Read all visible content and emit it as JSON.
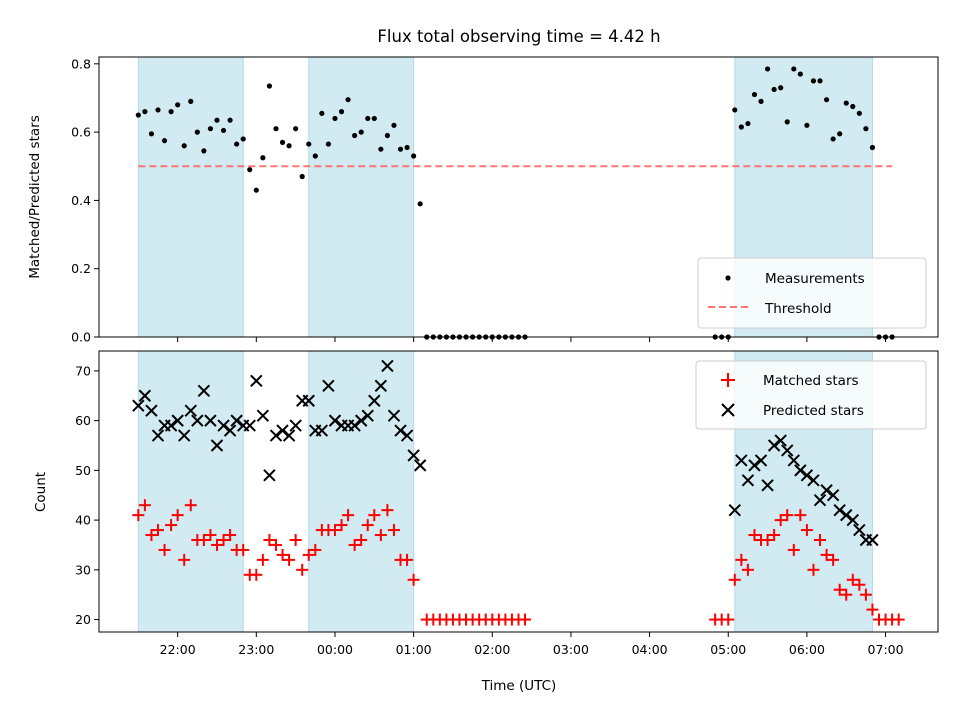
{
  "chart_data": [
    {
      "type": "scatter",
      "panel": "top",
      "title": "Flux total observing time = 4.42 h",
      "xlabel": "",
      "ylabel": "Matched/Predicted stars",
      "ylim": [
        0.0,
        0.82
      ],
      "yticks": [
        "0.0",
        "0.2",
        "0.4",
        "0.6",
        "0.8"
      ],
      "shaded_intervals": [
        [
          "21:30",
          "22:50"
        ],
        [
          "23:40",
          "01:00"
        ],
        [
          "05:05",
          "06:50"
        ]
      ],
      "shade_color": "#add8e6",
      "legend": {
        "position": "lower-right",
        "entries": [
          "Measurements",
          "Threshold"
        ]
      },
      "threshold": {
        "name": "Threshold",
        "value": 0.5,
        "x_range": [
          "21:30",
          "07:05"
        ],
        "color": "#ff6666",
        "style": "dashed"
      },
      "series": [
        {
          "name": "Measurements",
          "color": "#000000",
          "marker": "dot",
          "points": [
            [
              "21:30",
              0.65
            ],
            [
              "21:35",
              0.66
            ],
            [
              "21:40",
              0.595
            ],
            [
              "21:45",
              0.665
            ],
            [
              "21:50",
              0.575
            ],
            [
              "21:55",
              0.66
            ],
            [
              "22:00",
              0.68
            ],
            [
              "22:05",
              0.56
            ],
            [
              "22:10",
              0.69
            ],
            [
              "22:15",
              0.6
            ],
            [
              "22:20",
              0.545
            ],
            [
              "22:25",
              0.61
            ],
            [
              "22:30",
              0.635
            ],
            [
              "22:35",
              0.605
            ],
            [
              "22:40",
              0.635
            ],
            [
              "22:45",
              0.565
            ],
            [
              "22:50",
              0.58
            ],
            [
              "22:55",
              0.49
            ],
            [
              "23:00",
              0.43
            ],
            [
              "23:05",
              0.525
            ],
            [
              "23:10",
              0.735
            ],
            [
              "23:15",
              0.61
            ],
            [
              "23:20",
              0.57
            ],
            [
              "23:25",
              0.56
            ],
            [
              "23:30",
              0.61
            ],
            [
              "23:35",
              0.47
            ],
            [
              "23:40",
              0.565
            ],
            [
              "23:45",
              0.53
            ],
            [
              "23:50",
              0.655
            ],
            [
              "23:55",
              0.565
            ],
            [
              "00:00",
              0.64
            ],
            [
              "00:05",
              0.66
            ],
            [
              "00:10",
              0.695
            ],
            [
              "00:15",
              0.59
            ],
            [
              "00:20",
              0.6
            ],
            [
              "00:25",
              0.64
            ],
            [
              "00:30",
              0.64
            ],
            [
              "00:35",
              0.55
            ],
            [
              "00:40",
              0.59
            ],
            [
              "00:45",
              0.62
            ],
            [
              "00:50",
              0.55
            ],
            [
              "00:55",
              0.555
            ],
            [
              "01:00",
              0.53
            ],
            [
              "01:05",
              0.39
            ],
            [
              "01:10",
              0.0
            ],
            [
              "01:15",
              0.0
            ],
            [
              "01:20",
              0.0
            ],
            [
              "01:25",
              0.0
            ],
            [
              "01:30",
              0.0
            ],
            [
              "01:35",
              0.0
            ],
            [
              "01:40",
              0.0
            ],
            [
              "01:45",
              0.0
            ],
            [
              "01:50",
              0.0
            ],
            [
              "01:55",
              0.0
            ],
            [
              "02:00",
              0.0
            ],
            [
              "02:05",
              0.0
            ],
            [
              "02:10",
              0.0
            ],
            [
              "02:15",
              0.0
            ],
            [
              "02:20",
              0.0
            ],
            [
              "02:25",
              0.0
            ],
            [
              "04:50",
              0.0
            ],
            [
              "04:55",
              0.0
            ],
            [
              "05:00",
              0.0
            ],
            [
              "05:05",
              0.665
            ],
            [
              "05:10",
              0.615
            ],
            [
              "05:15",
              0.625
            ],
            [
              "05:20",
              0.71
            ],
            [
              "05:25",
              0.69
            ],
            [
              "05:30",
              0.785
            ],
            [
              "05:35",
              0.725
            ],
            [
              "05:40",
              0.73
            ],
            [
              "05:45",
              0.63
            ],
            [
              "05:50",
              0.785
            ],
            [
              "05:55",
              0.77
            ],
            [
              "06:00",
              0.62
            ],
            [
              "06:05",
              0.75
            ],
            [
              "06:10",
              0.75
            ],
            [
              "06:15",
              0.695
            ],
            [
              "06:20",
              0.58
            ],
            [
              "06:25",
              0.595
            ],
            [
              "06:30",
              0.685
            ],
            [
              "06:35",
              0.675
            ],
            [
              "06:40",
              0.655
            ],
            [
              "06:45",
              0.61
            ],
            [
              "06:50",
              0.555
            ],
            [
              "06:55",
              0.0
            ],
            [
              "07:00",
              0.0
            ],
            [
              "07:05",
              0.0
            ]
          ]
        }
      ]
    },
    {
      "type": "scatter",
      "panel": "bottom",
      "xlabel": "Time (UTC)",
      "ylabel": "Count",
      "ylim": [
        17.5,
        74
      ],
      "yticks": [
        "20",
        "30",
        "40",
        "50",
        "60",
        "70"
      ],
      "xlim": [
        "21:00",
        "07:40"
      ],
      "xticks": [
        "22:00",
        "23:00",
        "00:00",
        "01:00",
        "02:00",
        "03:00",
        "04:00",
        "05:00",
        "06:00",
        "07:00"
      ],
      "shaded_intervals": [
        [
          "21:30",
          "22:50"
        ],
        [
          "23:40",
          "01:00"
        ],
        [
          "05:05",
          "06:50"
        ]
      ],
      "shade_color": "#add8e6",
      "legend": {
        "position": "upper-right",
        "entries": [
          "Matched stars",
          "Predicted stars"
        ]
      },
      "series": [
        {
          "name": "Matched stars",
          "color": "#ff0000",
          "marker": "plus",
          "points": [
            [
              "21:30",
              41
            ],
            [
              "21:35",
              43
            ],
            [
              "21:40",
              37
            ],
            [
              "21:45",
              38
            ],
            [
              "21:50",
              34
            ],
            [
              "21:55",
              39
            ],
            [
              "22:00",
              41
            ],
            [
              "22:05",
              32
            ],
            [
              "22:10",
              43
            ],
            [
              "22:15",
              36
            ],
            [
              "22:20",
              36
            ],
            [
              "22:25",
              37
            ],
            [
              "22:30",
              35
            ],
            [
              "22:35",
              36
            ],
            [
              "22:40",
              37
            ],
            [
              "22:45",
              34
            ],
            [
              "22:50",
              34
            ],
            [
              "22:55",
              29
            ],
            [
              "23:00",
              29
            ],
            [
              "23:05",
              32
            ],
            [
              "23:10",
              36
            ],
            [
              "23:15",
              35
            ],
            [
              "23:20",
              33
            ],
            [
              "23:25",
              32
            ],
            [
              "23:30",
              36
            ],
            [
              "23:35",
              30
            ],
            [
              "23:40",
              33
            ],
            [
              "23:45",
              34
            ],
            [
              "23:50",
              38
            ],
            [
              "23:55",
              38
            ],
            [
              "00:00",
              38
            ],
            [
              "00:05",
              39
            ],
            [
              "00:10",
              41
            ],
            [
              "00:15",
              35
            ],
            [
              "00:20",
              36
            ],
            [
              "00:25",
              39
            ],
            [
              "00:30",
              41
            ],
            [
              "00:35",
              37
            ],
            [
              "00:40",
              42
            ],
            [
              "00:45",
              38
            ],
            [
              "00:50",
              32
            ],
            [
              "00:55",
              32
            ],
            [
              "01:00",
              28
            ],
            [
              "01:10",
              20
            ],
            [
              "01:15",
              20
            ],
            [
              "01:20",
              20
            ],
            [
              "01:25",
              20
            ],
            [
              "01:30",
              20
            ],
            [
              "01:35",
              20
            ],
            [
              "01:40",
              20
            ],
            [
              "01:45",
              20
            ],
            [
              "01:50",
              20
            ],
            [
              "01:55",
              20
            ],
            [
              "02:00",
              20
            ],
            [
              "02:05",
              20
            ],
            [
              "02:10",
              20
            ],
            [
              "02:15",
              20
            ],
            [
              "02:20",
              20
            ],
            [
              "02:25",
              20
            ],
            [
              "04:50",
              20
            ],
            [
              "04:55",
              20
            ],
            [
              "05:00",
              20
            ],
            [
              "05:05",
              28
            ],
            [
              "05:10",
              32
            ],
            [
              "05:15",
              30
            ],
            [
              "05:20",
              37
            ],
            [
              "05:25",
              36
            ],
            [
              "05:30",
              36
            ],
            [
              "05:35",
              37
            ],
            [
              "05:40",
              40
            ],
            [
              "05:45",
              41
            ],
            [
              "05:50",
              34
            ],
            [
              "05:55",
              41
            ],
            [
              "06:00",
              38
            ],
            [
              "06:05",
              30
            ],
            [
              "06:10",
              36
            ],
            [
              "06:15",
              33
            ],
            [
              "06:20",
              32
            ],
            [
              "06:25",
              26
            ],
            [
              "06:30",
              25
            ],
            [
              "06:35",
              28
            ],
            [
              "06:40",
              27
            ],
            [
              "06:45",
              25
            ],
            [
              "06:50",
              22
            ],
            [
              "06:55",
              20
            ],
            [
              "07:00",
              20
            ],
            [
              "07:05",
              20
            ],
            [
              "07:10",
              20
            ]
          ]
        },
        {
          "name": "Predicted stars",
          "color": "#000000",
          "marker": "x",
          "points": [
            [
              "21:30",
              63
            ],
            [
              "21:35",
              65
            ],
            [
              "21:40",
              62
            ],
            [
              "21:45",
              57
            ],
            [
              "21:50",
              59
            ],
            [
              "21:55",
              59
            ],
            [
              "22:00",
              60
            ],
            [
              "22:05",
              57
            ],
            [
              "22:10",
              62
            ],
            [
              "22:15",
              60
            ],
            [
              "22:20",
              66
            ],
            [
              "22:25",
              60
            ],
            [
              "22:30",
              55
            ],
            [
              "22:35",
              59
            ],
            [
              "22:40",
              58
            ],
            [
              "22:45",
              60
            ],
            [
              "22:50",
              59
            ],
            [
              "22:55",
              59
            ],
            [
              "23:00",
              68
            ],
            [
              "23:05",
              61
            ],
            [
              "23:10",
              49
            ],
            [
              "23:15",
              57
            ],
            [
              "23:20",
              58
            ],
            [
              "23:25",
              57
            ],
            [
              "23:30",
              59
            ],
            [
              "23:35",
              64
            ],
            [
              "23:40",
              64
            ],
            [
              "23:45",
              58
            ],
            [
              "23:50",
              58
            ],
            [
              "23:55",
              67
            ],
            [
              "00:00",
              60
            ],
            [
              "00:05",
              59
            ],
            [
              "00:10",
              59
            ],
            [
              "00:15",
              59
            ],
            [
              "00:20",
              60
            ],
            [
              "00:25",
              61
            ],
            [
              "00:30",
              64
            ],
            [
              "00:35",
              67
            ],
            [
              "00:40",
              71
            ],
            [
              "00:45",
              61
            ],
            [
              "00:50",
              58
            ],
            [
              "00:55",
              57
            ],
            [
              "01:00",
              53
            ],
            [
              "01:05",
              51
            ],
            [
              "05:05",
              42
            ],
            [
              "05:10",
              52
            ],
            [
              "05:15",
              48
            ],
            [
              "05:20",
              51
            ],
            [
              "05:25",
              52
            ],
            [
              "05:30",
              47
            ],
            [
              "05:35",
              55
            ],
            [
              "05:40",
              56
            ],
            [
              "05:45",
              54
            ],
            [
              "05:50",
              52
            ],
            [
              "05:55",
              50
            ],
            [
              "06:00",
              49
            ],
            [
              "06:05",
              48
            ],
            [
              "06:10",
              44
            ],
            [
              "06:15",
              46
            ],
            [
              "06:20",
              45
            ],
            [
              "06:25",
              42
            ],
            [
              "06:30",
              41
            ],
            [
              "06:35",
              40
            ],
            [
              "06:40",
              38
            ],
            [
              "06:45",
              36
            ],
            [
              "06:50",
              36
            ]
          ]
        }
      ]
    }
  ]
}
